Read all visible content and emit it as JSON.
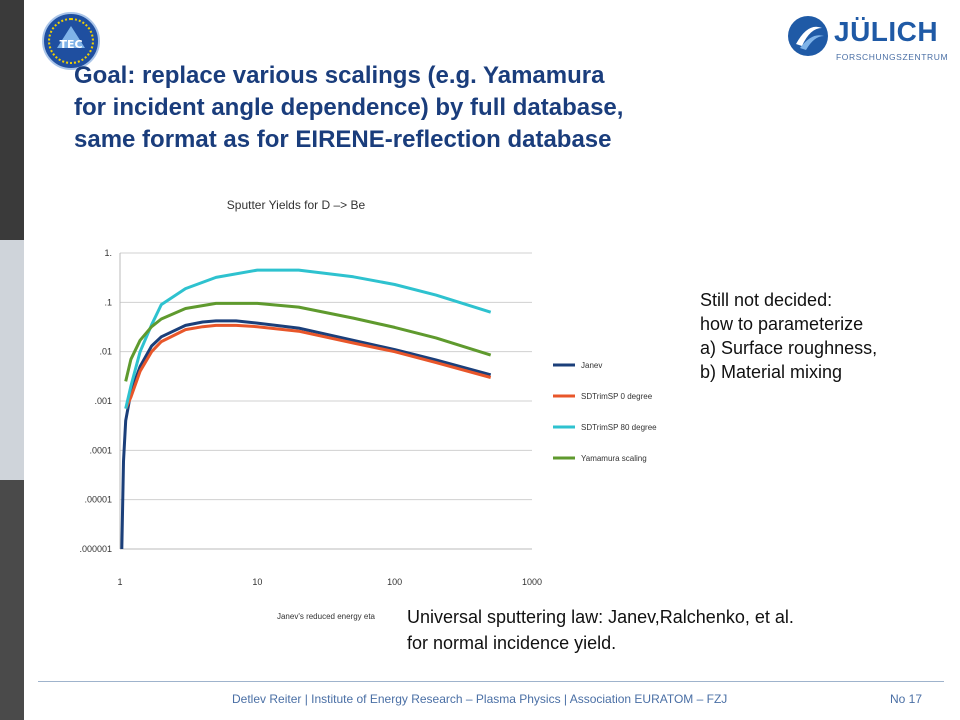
{
  "logos": {
    "tec_text": "TEC",
    "fzj_name": "JÜLICH",
    "fzj_sub": "FORSCHUNGSZENTRUM"
  },
  "title_lines": [
    "Goal: replace various scalings (e.g. Yamamura",
    "for incident angle dependence) by full database,",
    "same format as for EIRENE-reflection database"
  ],
  "side_note": [
    "Still not decided:",
    "how to parameterize",
    "a) Surface roughness,",
    "b) Material mixing"
  ],
  "bottom_note": [
    "Universal sputtering law: Janev,Ralchenko,  et al.",
    "for normal incidence yield."
  ],
  "footer": {
    "text": "Detlev Reiter | Institute of Energy Research – Plasma Physics | Association EURATOM – FZJ",
    "page": "No 17"
  },
  "colors": {
    "sidebar": [
      "#3a3a3a",
      "#cfd4da",
      "#4a4a4a"
    ]
  },
  "chart_data": {
    "type": "line",
    "title": "Sputter Yields for D –> Be",
    "xlabel": "Janev's reduced energy eta",
    "ylabel": "",
    "x_scale": "log",
    "y_scale": "log",
    "xlim": [
      1,
      1000
    ],
    "ylim": [
      1e-06,
      1
    ],
    "x_ticks": [
      {
        "value": 1,
        "label": "1"
      },
      {
        "value": 10,
        "label": "10"
      },
      {
        "value": 100,
        "label": "100"
      },
      {
        "value": 1000,
        "label": "1000"
      }
    ],
    "y_ticks": [
      {
        "value": 1,
        "label": "1."
      },
      {
        "value": 0.1,
        "label": ".1"
      },
      {
        "value": 0.01,
        "label": ".01"
      },
      {
        "value": 0.001,
        "label": ".001"
      },
      {
        "value": 0.0001,
        "label": ".0001"
      },
      {
        "value": 1e-05,
        "label": ".00001"
      },
      {
        "value": 1e-06,
        "label": ".000001"
      }
    ],
    "grid": "horizontal",
    "legend_position": "right",
    "series": [
      {
        "name": "Janev",
        "color": "#1b3f7a",
        "x": [
          1.03,
          1.06,
          1.1,
          1.2,
          1.4,
          1.7,
          2,
          3,
          4,
          5,
          7,
          10,
          20,
          50,
          100,
          200,
          500
        ],
        "y": [
          1e-06,
          6e-05,
          0.0004,
          0.0015,
          0.005,
          0.013,
          0.02,
          0.034,
          0.04,
          0.042,
          0.042,
          0.038,
          0.03,
          0.017,
          0.011,
          0.0068,
          0.0034
        ]
      },
      {
        "name": "SDTrimSP 0 degree",
        "color": "#e8562a",
        "x": [
          1.1,
          1.2,
          1.4,
          1.7,
          2,
          3,
          4,
          5,
          7,
          10,
          20,
          50,
          100,
          200,
          500
        ],
        "y": [
          0.0007,
          0.0012,
          0.004,
          0.01,
          0.016,
          0.028,
          0.032,
          0.034,
          0.034,
          0.032,
          0.026,
          0.015,
          0.01,
          0.006,
          0.003
        ]
      },
      {
        "name": "SDTrimSP 80 degree",
        "color": "#2ec2cf",
        "x": [
          1.1,
          1.2,
          1.4,
          1.7,
          2,
          3,
          5,
          10,
          20,
          50,
          100,
          200,
          500
        ],
        "y": [
          0.0007,
          0.002,
          0.01,
          0.035,
          0.09,
          0.19,
          0.32,
          0.45,
          0.45,
          0.33,
          0.23,
          0.14,
          0.063
        ]
      },
      {
        "name": "Yamamura scaling",
        "color": "#5f9a2e",
        "x": [
          1.1,
          1.2,
          1.4,
          1.7,
          2,
          3,
          5,
          10,
          20,
          50,
          100,
          200,
          500
        ],
        "y": [
          0.0025,
          0.007,
          0.017,
          0.032,
          0.046,
          0.075,
          0.095,
          0.095,
          0.08,
          0.048,
          0.031,
          0.019,
          0.0085
        ]
      }
    ]
  }
}
